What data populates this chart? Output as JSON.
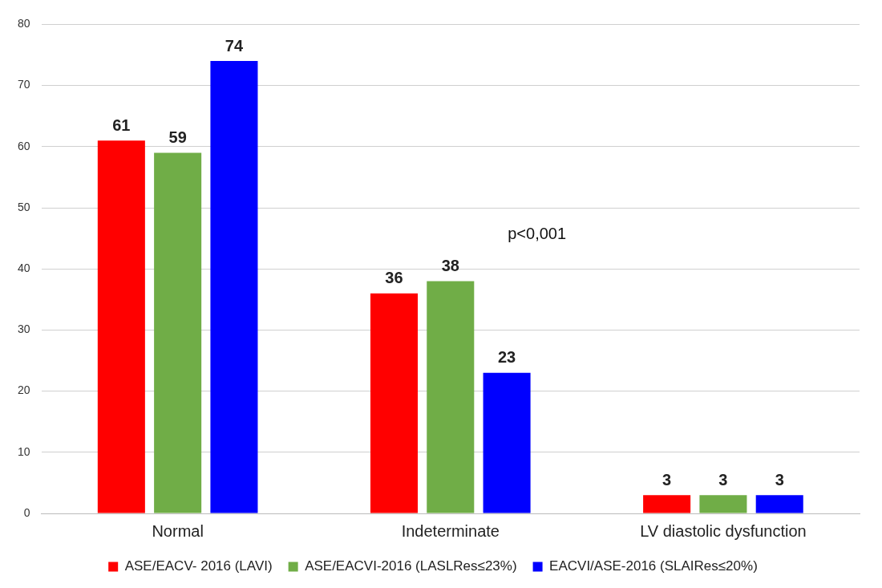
{
  "chart_data": {
    "type": "bar",
    "categories": [
      "Normal",
      "Indeterminate",
      "LV diastolic dysfunction"
    ],
    "series": [
      {
        "name": "ASE/EACV- 2016 (LAVI)",
        "color": "#ff0000",
        "values": [
          61,
          36,
          3
        ]
      },
      {
        "name": "ASE/EACVI-2016 (LASLRes≤23%)",
        "color": "#70ad47",
        "values": [
          59,
          38,
          3
        ]
      },
      {
        "name": "EACVI/ASE-2016 (SLAIRes≤20%)",
        "color": "#0000ff",
        "values": [
          74,
          23,
          3
        ]
      }
    ],
    "ylim": [
      0,
      80
    ],
    "yticks": [
      0,
      10,
      20,
      30,
      40,
      50,
      60,
      70,
      80
    ],
    "grid": "y",
    "legend": "bottom",
    "data_labels": true,
    "annotations": [
      "p<0,001"
    ]
  }
}
